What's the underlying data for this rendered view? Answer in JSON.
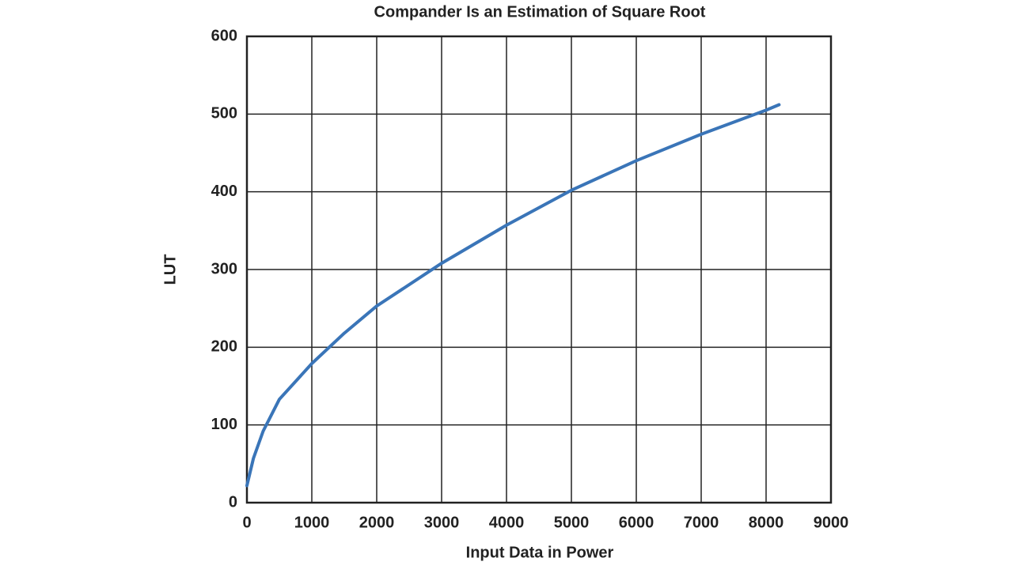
{
  "chart_data": {
    "type": "line",
    "title": "Compander Is an Estimation of Square Root",
    "x_label": "Input Data in Power",
    "y_label": "LUT",
    "x": [
      0,
      100,
      250,
      500,
      1000,
      1500,
      2000,
      3000,
      4000,
      5000,
      6000,
      7000,
      8000,
      8200
    ],
    "values": [
      22,
      57,
      92,
      133,
      179,
      218,
      253,
      308,
      357,
      402,
      440,
      474,
      505,
      512
    ],
    "color": "#3a75b8",
    "xlim": [
      0,
      9000
    ],
    "xticks": [
      0,
      1000,
      2000,
      3000,
      4000,
      5000,
      6000,
      7000,
      8000,
      9000
    ],
    "ylim": [
      0,
      600
    ],
    "yticks": [
      0,
      100,
      200,
      300,
      400,
      500,
      600
    ],
    "grid": true
  }
}
